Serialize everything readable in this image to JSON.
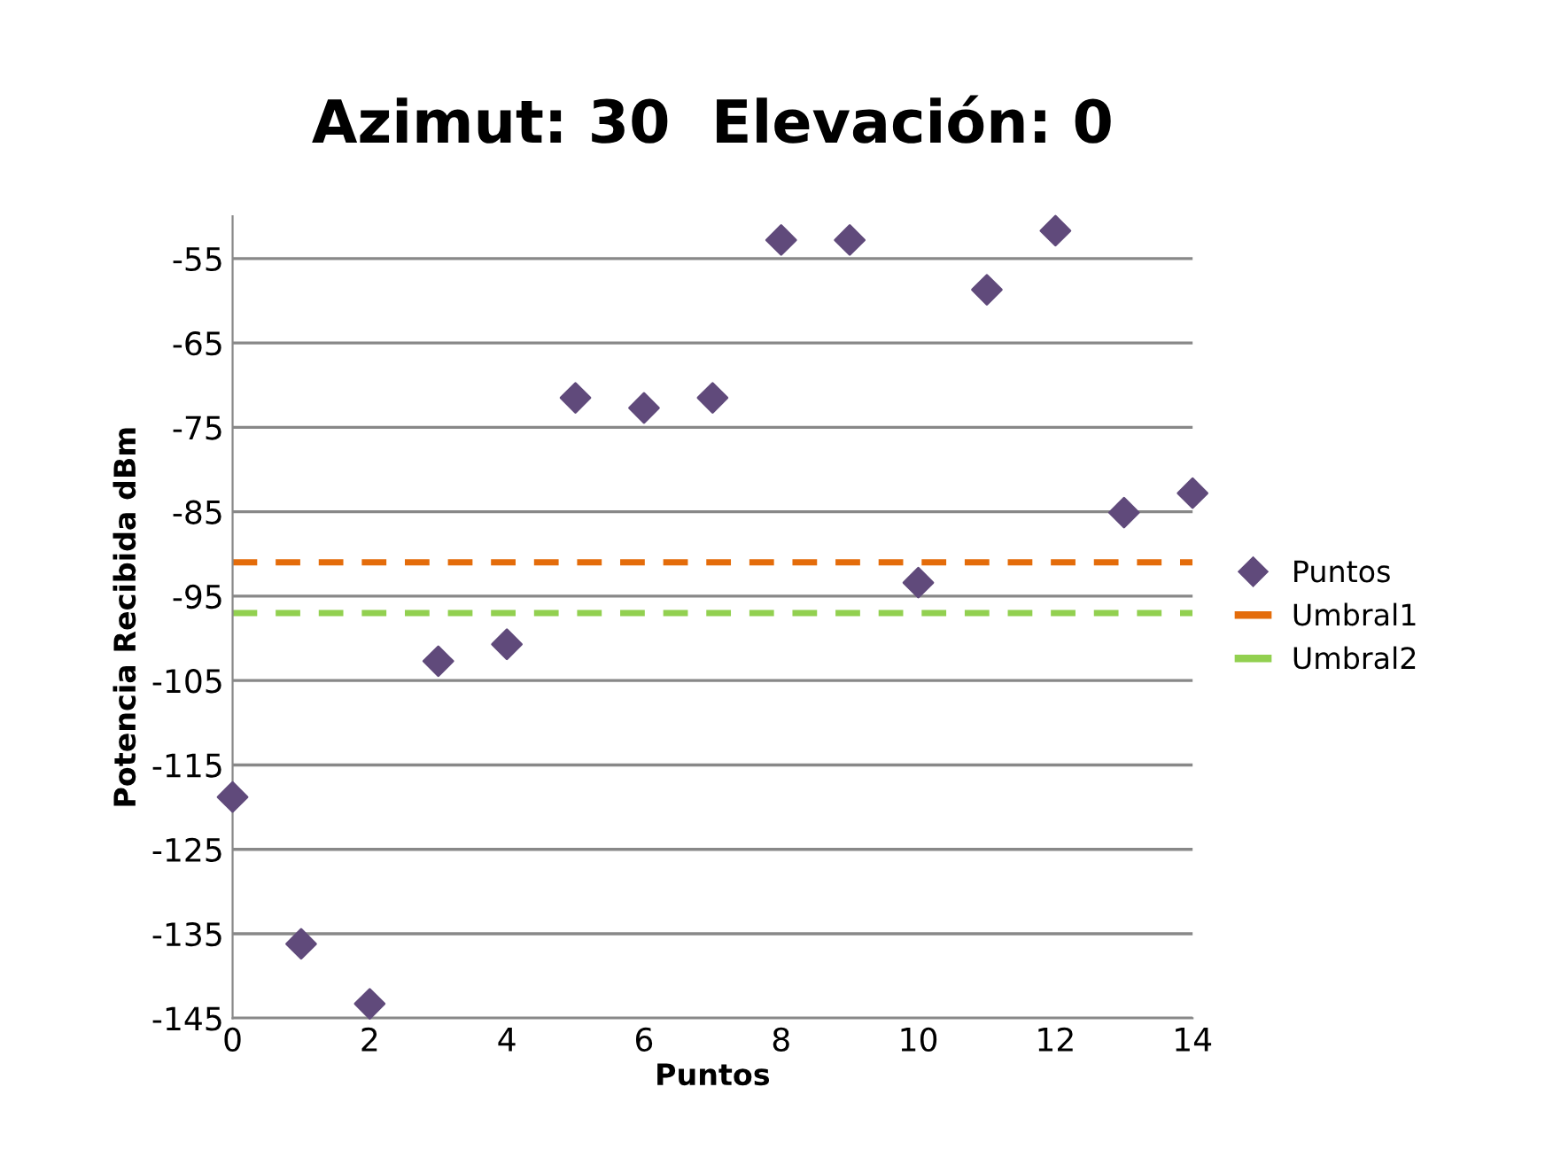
{
  "chart_data": {
    "type": "scatter",
    "title": "Azimut: 30  Elevación: 0",
    "xlabel": "Puntos",
    "ylabel": "Potencia Recibida dBm",
    "x": [
      0,
      1,
      2,
      3,
      4,
      5,
      6,
      7,
      8,
      9,
      10,
      11,
      12,
      13,
      14
    ],
    "series": [
      {
        "name": "Puntos",
        "color": "#604a7b",
        "values": [
          -118.8,
          -136.2,
          -143.3,
          -102.7,
          -100.7,
          -71.5,
          -72.7,
          -71.5,
          -52.8,
          -52.8,
          -93.4,
          -58.7,
          -51.7,
          -85.1,
          -82.8
        ]
      }
    ],
    "marker": "diamond",
    "ref_lines": [
      {
        "axis": "y",
        "value": -91,
        "label": "Umbral1",
        "color": "#e46c0a",
        "line_style": "dashed"
      },
      {
        "axis": "y",
        "value": -97,
        "label": "Umbral2",
        "color": "#92d050",
        "line_style": "dashed"
      }
    ],
    "xlim": [
      0,
      14
    ],
    "xticks": [
      0,
      2,
      4,
      6,
      8,
      10,
      12,
      14
    ],
    "ylim": [
      -145,
      -50
    ],
    "yticks": [
      -55,
      -65,
      -75,
      -85,
      -95,
      -105,
      -115,
      -125,
      -135,
      -145
    ],
    "grid": "y",
    "legend": "right"
  }
}
